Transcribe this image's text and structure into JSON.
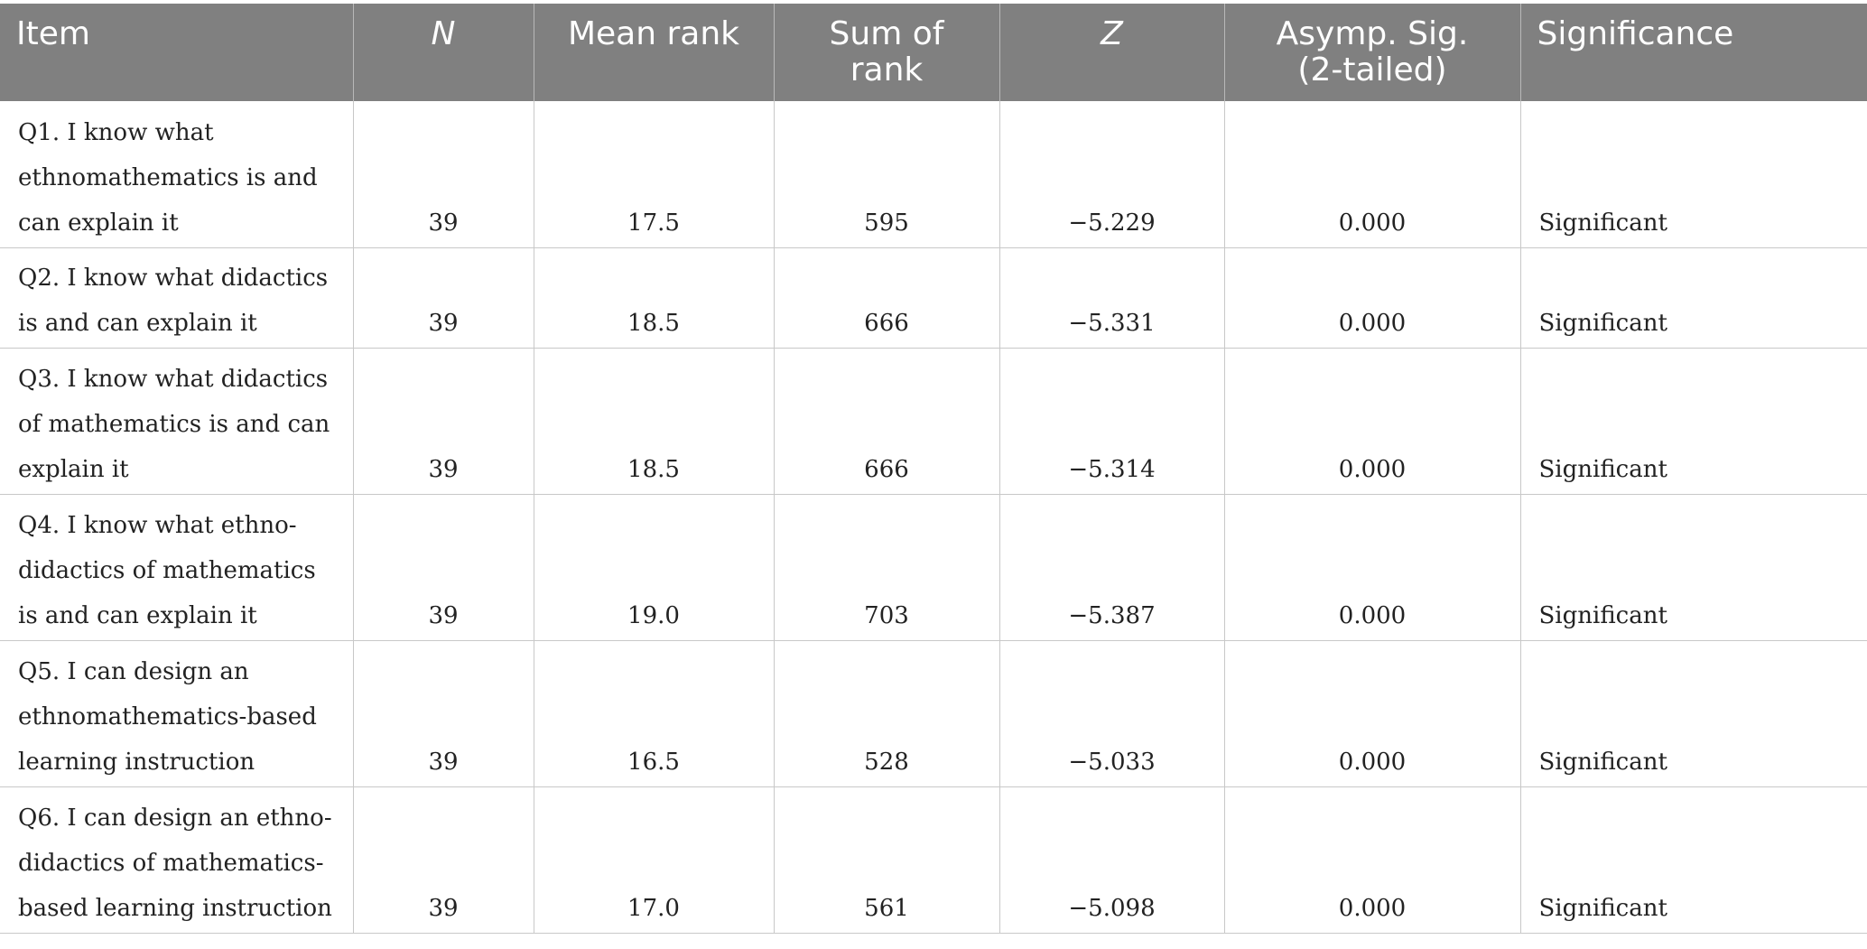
{
  "table": {
    "headers": {
      "item": "Item",
      "n": "N",
      "mean_rank": "Mean rank",
      "sum_of_rank": "Sum of rank",
      "z": "Z",
      "asymp_sig_line1": "Asymp. Sig.",
      "asymp_sig_line2": "(2-tailed)",
      "significance": "Significance"
    },
    "rows": [
      {
        "item": "Q1. I know what ethnomathematics is and can explain it",
        "n": "39",
        "mean_rank": "17.5",
        "sum_of_rank": "595",
        "z": "−5.229",
        "asymp_sig": "0.000",
        "significance": "Significant"
      },
      {
        "item": "Q2. I know what didactics is and can explain it",
        "n": "39",
        "mean_rank": "18.5",
        "sum_of_rank": "666",
        "z": "−5.331",
        "asymp_sig": "0.000",
        "significance": "Significant"
      },
      {
        "item": "Q3. I know what didactics of mathematics is and can explain it",
        "n": "39",
        "mean_rank": "18.5",
        "sum_of_rank": "666",
        "z": "−5.314",
        "asymp_sig": "0.000",
        "significance": "Significant"
      },
      {
        "item": "Q4. I know what ethno-didactics of mathematics is and can explain it",
        "n": "39",
        "mean_rank": "19.0",
        "sum_of_rank": "703",
        "z": "−5.387",
        "asymp_sig": "0.000",
        "significance": "Significant"
      },
      {
        "item": "Q5. I can design an ethnomathematics-based learning instruction",
        "n": "39",
        "mean_rank": "16.5",
        "sum_of_rank": "528",
        "z": "−5.033",
        "asymp_sig": "0.000",
        "significance": "Significant"
      },
      {
        "item": "Q6. I can design an ethno-didactics of mathematics-based learning instruction",
        "n": "39",
        "mean_rank": "17.0",
        "sum_of_rank": "561",
        "z": "−5.098",
        "asymp_sig": "0.000",
        "significance": "Significant"
      }
    ]
  }
}
